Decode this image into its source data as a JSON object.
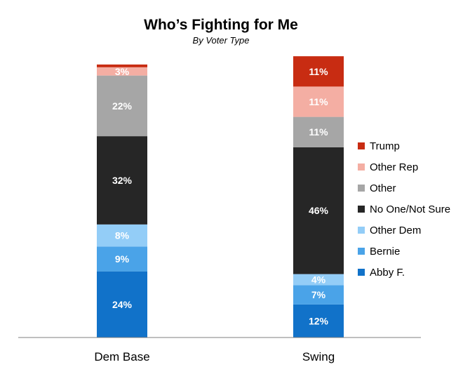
{
  "chart_data": {
    "type": "bar",
    "stacked": true,
    "title": "Who’s Fighting for Me",
    "subtitle": "By Voter Type",
    "categories": [
      "Dem Base",
      "Swing"
    ],
    "ylim": [
      0,
      100
    ],
    "grid": false,
    "legend_position": "right",
    "series": [
      {
        "name": "Abby F.",
        "color": "#1172c9",
        "values": [
          24,
          12
        ],
        "labels": [
          "24%",
          "12%"
        ]
      },
      {
        "name": "Bernie",
        "color": "#4aa3e8",
        "values": [
          9,
          7
        ],
        "labels": [
          "9%",
          "7%"
        ]
      },
      {
        "name": "Other Dem",
        "color": "#93cdf7",
        "values": [
          8,
          4
        ],
        "labels": [
          "8%",
          "4%"
        ]
      },
      {
        "name": "No One/Not Sure",
        "color": "#262626",
        "values": [
          32,
          46
        ],
        "labels": [
          "32%",
          "46%"
        ]
      },
      {
        "name": "Other",
        "color": "#a6a6a6",
        "values": [
          22,
          11
        ],
        "labels": [
          "22%",
          "11%"
        ]
      },
      {
        "name": "Other Rep",
        "color": "#f4aea3",
        "values": [
          3,
          11
        ],
        "labels": [
          "3%",
          "11%"
        ]
      },
      {
        "name": "Trump",
        "color": "#c82c12",
        "values": [
          1,
          11
        ],
        "labels": [
          "",
          "11%"
        ]
      }
    ],
    "legend_order": [
      "Trump",
      "Other Rep",
      "Other",
      "No One/Not Sure",
      "Other Dem",
      "Bernie",
      "Abby F."
    ]
  }
}
